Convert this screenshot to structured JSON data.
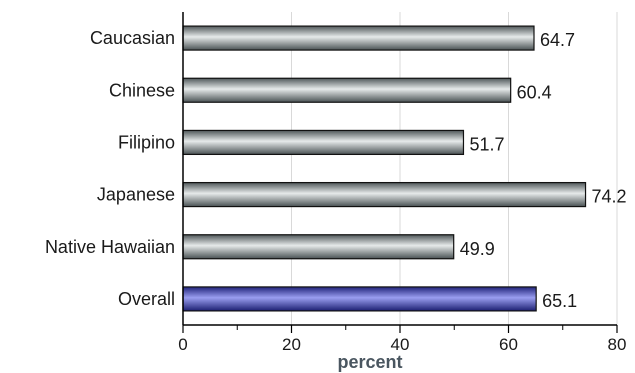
{
  "chart_data": {
    "type": "bar",
    "orientation": "horizontal",
    "categories": [
      "Caucasian",
      "Chinese",
      "Filipino",
      "Japanese",
      "Native Hawaiian",
      "Overall"
    ],
    "values": [
      64.7,
      60.4,
      51.7,
      74.2,
      49.9,
      65.1
    ],
    "value_labels": [
      "64.7",
      "60.4",
      "51.7",
      "74.2",
      "49.9",
      "65.1"
    ],
    "xlabel": "percent",
    "ylabel": "",
    "title": "",
    "xlim": [
      0,
      80
    ],
    "x_ticks": [
      0,
      20,
      40,
      60,
      80
    ],
    "grid": "vertical",
    "colors": {
      "bar": "#7f8a8c",
      "bar_highlight": "#3b3fb0",
      "axis_title": "#4a5660"
    },
    "highlighted_category": "Overall"
  }
}
